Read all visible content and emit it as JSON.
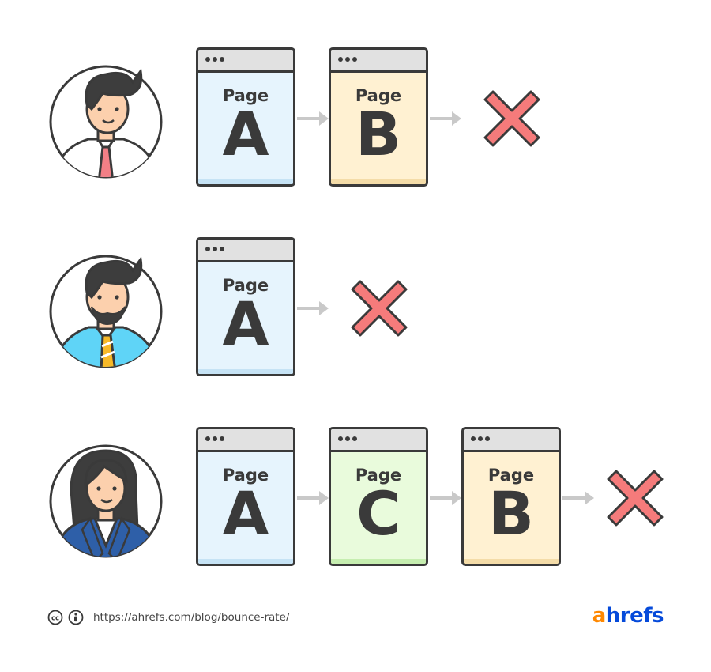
{
  "page_label": "Page",
  "rows": [
    {
      "pages": [
        "A",
        "B"
      ]
    },
    {
      "pages": [
        "A"
      ]
    },
    {
      "pages": [
        "A",
        "C",
        "B"
      ]
    }
  ],
  "footer": {
    "cc_icon": "cc-icon",
    "by_icon": "attribution-icon",
    "url": "https://ahrefs.com/blog/bounce-rate/",
    "logo_first": "a",
    "logo_rest": "hrefs"
  },
  "colors": {
    "page_a": "#e6f4fd",
    "page_b": "#fff1d2",
    "page_c": "#e9fbdc",
    "x_mark": "#f57b7b",
    "arrow": "#c9c9c9",
    "outline": "#3a3a3a",
    "logo_orange": "#ff8800",
    "logo_blue": "#054ada"
  }
}
